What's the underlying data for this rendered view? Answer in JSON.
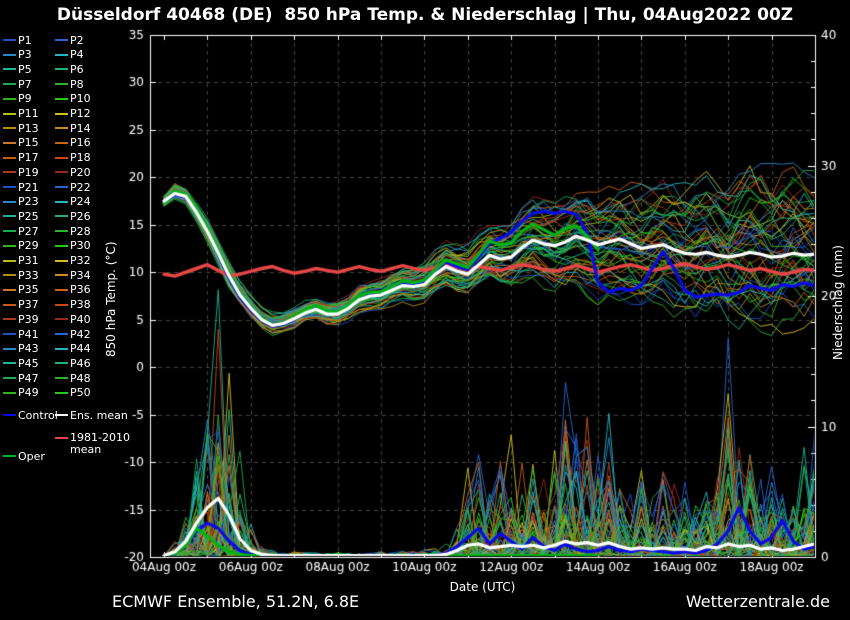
{
  "title": "Düsseldorf 40468 (DE)  850 hPa Temp. & Niederschlag | Thu, 04Aug2022 00Z",
  "footer": {
    "left": "ECMWF Ensemble, 51.2N, 6.8E",
    "right": "Wetterzentrale.de"
  },
  "legend": {
    "members": [
      "P1",
      "P2",
      "P3",
      "P4",
      "P5",
      "P6",
      "P7",
      "P8",
      "P9",
      "P10",
      "P11",
      "P12",
      "P13",
      "P14",
      "P15",
      "P16",
      "P17",
      "P18",
      "P19",
      "P20",
      "P21",
      "P22",
      "P23",
      "P24",
      "P25",
      "P26",
      "P27",
      "P28",
      "P29",
      "P30",
      "P31",
      "P32",
      "P33",
      "P34",
      "P35",
      "P36",
      "P37",
      "P38",
      "P39",
      "P40",
      "P41",
      "P42",
      "P43",
      "P44",
      "P45",
      "P46",
      "P47",
      "P48",
      "P49",
      "P50"
    ],
    "specials": [
      {
        "id": "control",
        "label": "Control",
        "color": "#0a0ae6"
      },
      {
        "id": "ens-mean",
        "label": "Ens. mean",
        "color": "#ffffff"
      },
      {
        "id": "climate-mean",
        "label": "1981-2010 mean",
        "color": "#e64646"
      },
      {
        "id": "oper",
        "label": "Oper",
        "color": "#00b414"
      }
    ]
  },
  "chart_data": {
    "type": "line",
    "title": "Düsseldorf 40468 (DE)  850 hPa Temp. & Niederschlag | Thu, 04Aug2022 00Z",
    "x_axis": {
      "label": "Date (UTC)",
      "tick_labels": [
        "04Aug 00z",
        "06Aug 00z",
        "08Aug 00z",
        "10Aug 00z",
        "12Aug 00z",
        "14Aug 00z",
        "16Aug 00z",
        "18Aug 00z"
      ],
      "tick_positions_days": [
        0,
        2,
        4,
        6,
        8,
        10,
        12,
        14
      ],
      "gridline_interval_days": 1,
      "range_days": [
        0,
        15
      ]
    },
    "y_left": {
      "label": "850 hPa Temp. (°C)",
      "range": [
        -20,
        35
      ],
      "tick_interval": 5,
      "ticks": [
        35,
        30,
        25,
        20,
        15,
        10,
        5,
        0,
        -5,
        -10,
        -15,
        -20
      ]
    },
    "y_right": {
      "label": "Niederschlag (mm)",
      "range": [
        0,
        40
      ],
      "major_ticks": [
        0,
        10,
        20,
        30,
        40
      ],
      "minor_tick_interval": 2
    },
    "time_step_days": 0.25,
    "series": {
      "ens_mean_temp": [
        17.5,
        18.3,
        18.0,
        16.3,
        14.3,
        12.0,
        9.6,
        7.6,
        6.2,
        5.0,
        4.4,
        4.6,
        5.1,
        5.7,
        6.1,
        5.6,
        5.6,
        6.2,
        7.1,
        7.5,
        7.6,
        8.1,
        8.6,
        8.5,
        8.7,
        9.8,
        10.6,
        10.1,
        9.8,
        10.8,
        11.8,
        11.4,
        11.6,
        12.6,
        13.4,
        13.0,
        12.8,
        13.2,
        13.8,
        13.4,
        12.9,
        13.2,
        13.5,
        13.0,
        12.5,
        12.7,
        12.9,
        12.4,
        12.0,
        11.9,
        12.1,
        11.8,
        11.6,
        11.8,
        12.1,
        11.9,
        11.6,
        11.7,
        12.0,
        11.8,
        11.9
      ],
      "control_temp": [
        17.4,
        18.2,
        17.9,
        16.4,
        14.4,
        11.9,
        9.4,
        7.4,
        6.0,
        4.9,
        4.3,
        4.5,
        5.0,
        5.8,
        6.3,
        5.7,
        5.7,
        6.4,
        7.3,
        7.7,
        7.8,
        8.3,
        8.9,
        8.7,
        9.0,
        10.2,
        11.1,
        10.6,
        10.3,
        11.6,
        13.0,
        13.6,
        14.2,
        15.4,
        16.2,
        16.4,
        16.2,
        16.4,
        16.1,
        14.2,
        9.0,
        7.9,
        8.3,
        8.1,
        8.6,
        10.4,
        12.2,
        10.4,
        8.1,
        7.4,
        7.6,
        7.7,
        7.6,
        7.9,
        8.6,
        8.3,
        8.1,
        8.7,
        8.5,
        8.9,
        8.6
      ],
      "oper_temp": [
        17.3,
        18.5,
        18.2,
        16.7,
        14.7,
        12.2,
        9.8,
        7.7,
        6.3,
        5.2,
        4.4,
        4.7,
        5.3,
        6.0,
        6.5,
        5.9,
        5.8,
        6.5,
        7.5,
        7.9,
        7.9,
        8.5,
        9.1,
        8.9,
        9.2,
        10.3,
        11.3,
        10.9,
        10.5,
        11.9,
        13.3,
        12.9,
        13.1,
        14.3,
        15.1,
        14.5,
        13.9,
        14.6,
        14.9,
        13.8,
        12.4
      ],
      "climate_mean_temp": [
        9.8,
        9.6,
        10.0,
        10.4,
        10.8,
        10.2,
        9.6,
        9.8,
        10.1,
        10.4,
        10.6,
        10.2,
        9.9,
        10.1,
        10.4,
        10.2,
        10.0,
        10.3,
        10.6,
        10.3,
        10.1,
        10.4,
        10.7,
        10.4,
        10.2,
        10.5,
        10.8,
        10.5,
        10.3,
        10.6,
        10.4,
        10.2,
        10.5,
        10.8,
        10.6,
        10.3,
        10.1,
        10.4,
        10.7,
        10.4,
        10.0,
        10.3,
        10.6,
        10.8,
        10.5,
        10.2,
        10.4,
        10.7,
        10.9,
        10.6,
        10.3,
        10.5,
        10.8,
        10.5,
        10.2,
        10.4,
        10.1,
        9.8,
        10.0,
        10.3,
        10.2
      ],
      "ens_mean_precip": [
        0.1,
        0.4,
        1.2,
        2.6,
        3.8,
        4.5,
        3.2,
        1.4,
        0.5,
        0.2,
        0.1,
        0.1,
        0.1,
        0.1,
        0.1,
        0.1,
        0.1,
        0.1,
        0.1,
        0.1,
        0.1,
        0.1,
        0.1,
        0.1,
        0.1,
        0.1,
        0.2,
        0.5,
        0.9,
        1.0,
        0.7,
        0.8,
        0.9,
        0.8,
        0.9,
        0.7,
        0.9,
        1.2,
        1.0,
        1.1,
        0.9,
        1.1,
        0.8,
        0.6,
        0.7,
        0.6,
        0.7,
        0.6,
        0.6,
        0.5,
        0.8,
        0.7,
        1.0,
        0.8,
        0.9,
        0.6,
        0.7,
        0.5,
        0.6,
        0.8,
        1.0
      ],
      "control_precip": [
        0.1,
        0.3,
        1.0,
        2.0,
        2.6,
        2.2,
        1.2,
        0.5,
        0.2,
        0.0,
        0.0,
        0.0,
        0.0,
        0.0,
        0.0,
        0.0,
        0.0,
        0.0,
        0.0,
        0.0,
        0.0,
        0.0,
        0.0,
        0.0,
        0.1,
        0.1,
        0.3,
        0.8,
        1.5,
        2.2,
        1.0,
        1.8,
        1.2,
        0.6,
        1.5,
        0.8,
        0.5,
        1.0,
        0.6,
        0.4,
        0.5,
        0.8,
        0.5,
        0.4,
        0.6,
        0.5,
        0.4,
        0.3,
        0.4,
        0.3,
        0.5,
        1.0,
        2.0,
        3.8,
        2.0,
        1.0,
        1.5,
        2.8,
        1.2,
        0.6,
        0.8
      ],
      "oper_precip": [
        0.1,
        0.3,
        0.9,
        2.2,
        1.6,
        0.9,
        0.4,
        0.2,
        0.1,
        0.1,
        0.1,
        0.1,
        0.1,
        0.1,
        0.1,
        0.1,
        0.1,
        0.1,
        0.1,
        0.1,
        0.1,
        0.1,
        0.1,
        0.1,
        0.1,
        0.1,
        0.1,
        0.1,
        0.1,
        0.1,
        0.1,
        0.1,
        0.1,
        0.1,
        0.1,
        0.1,
        0.1,
        0.1,
        0.1,
        0.1,
        0.1
      ],
      "envelope_temp_min": [
        16.8,
        17.6,
        17.2,
        15.4,
        13.2,
        10.8,
        8.4,
        6.6,
        5.2,
        4.0,
        3.4,
        3.6,
        4.0,
        4.6,
        4.9,
        4.4,
        4.3,
        4.9,
        5.7,
        6.0,
        6.0,
        6.4,
        6.8,
        6.6,
        6.6,
        7.4,
        8.0,
        7.4,
        7.0,
        7.8,
        8.6,
        8.0,
        8.0,
        8.6,
        9.2,
        8.6,
        8.0,
        8.2,
        8.6,
        7.8,
        7.0,
        7.0,
        7.2,
        6.6,
        6.0,
        6.2,
        6.4,
        5.8,
        5.2,
        5.2,
        5.2,
        4.8,
        4.4,
        4.6,
        4.8,
        4.4,
        4.0,
        4.2,
        4.4,
        4.2,
        4.0
      ],
      "envelope_temp_max": [
        18.2,
        19.6,
        19.0,
        17.4,
        15.6,
        13.4,
        11.0,
        9.0,
        7.6,
        6.4,
        5.8,
        6.0,
        6.6,
        7.2,
        7.6,
        7.0,
        7.2,
        7.8,
        8.8,
        9.2,
        9.4,
        10.0,
        10.6,
        10.6,
        11.0,
        12.2,
        13.2,
        13.0,
        13.0,
        14.2,
        15.4,
        15.2,
        15.6,
        16.8,
        17.8,
        17.6,
        17.4,
        18.0,
        18.8,
        18.4,
        18.0,
        18.6,
        19.2,
        19.0,
        18.8,
        19.4,
        20.0,
        19.8,
        19.6,
        20.2,
        20.8,
        20.6,
        20.4,
        21.0,
        21.6,
        21.4,
        21.2,
        21.8,
        22.4,
        22.1,
        21.8
      ],
      "envelope_precip_max": [
        0.3,
        1.5,
        3.5,
        8.0,
        14.0,
        19.5,
        16.5,
        8.0,
        2.5,
        1.0,
        0.5,
        0.3,
        0.4,
        0.3,
        0.3,
        0.3,
        0.4,
        0.3,
        0.3,
        0.3,
        0.4,
        0.3,
        0.4,
        0.4,
        0.5,
        0.6,
        1.0,
        2.5,
        6.5,
        8.0,
        6.0,
        7.0,
        10.0,
        7.0,
        8.0,
        6.0,
        8.0,
        13.5,
        9.0,
        12.0,
        8.0,
        12.5,
        7.0,
        5.0,
        6.5,
        5.0,
        7.0,
        5.5,
        6.0,
        5.0,
        8.0,
        6.0,
        16.0,
        8.0,
        9.5,
        6.0,
        7.0,
        5.0,
        6.0,
        8.0,
        12.0
      ]
    },
    "ensemble": {
      "member_count": 50,
      "seed": 42,
      "color_cycle": [
        "#1e50c8",
        "#2864d2",
        "#2886cc",
        "#28b4be",
        "#1eb496",
        "#1eb478",
        "#1eaa50",
        "#28b432",
        "#32b41e",
        "#28c814",
        "#b4be14",
        "#d2be1e",
        "#b48c14",
        "#c88c1e",
        "#c87828",
        "#c86414",
        "#c85a14",
        "#c84614",
        "#aa3c1e",
        "#96281e"
      ]
    },
    "colors": {
      "background": "#000000",
      "axis": "#ffffff",
      "grid": "#45453c",
      "text": "#ffffff",
      "control": "#0a0ae6",
      "ens_mean": "#ffffff",
      "oper": "#00b414",
      "climate_mean": "#e64646"
    }
  }
}
